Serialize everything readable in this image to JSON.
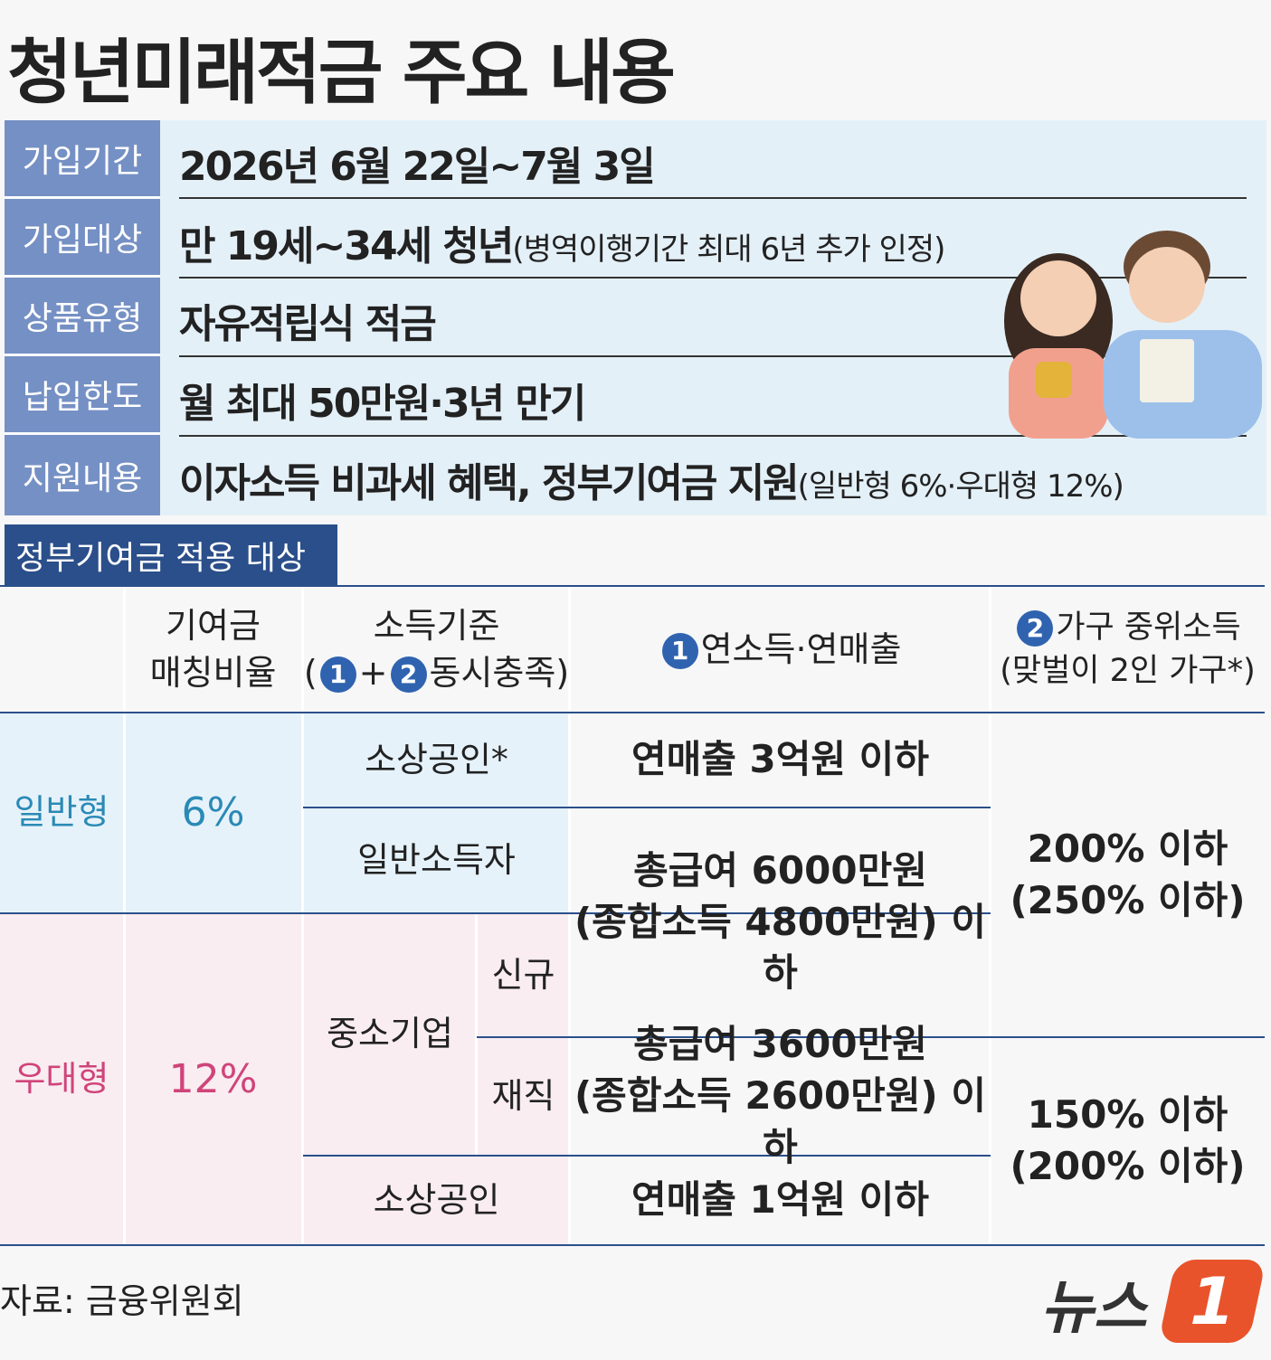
{
  "title": "청년미래적금 주요 내용",
  "summary": [
    {
      "label": "가입기간",
      "value": "2026년 6월 22일~7월 3일"
    },
    {
      "label": "가입대상",
      "value": "만 19세~34세 청년",
      "note": "(병역이행기간 최대 6년 추가 인정)"
    },
    {
      "label": "상품유형",
      "value": "자유적립식 적금"
    },
    {
      "label": "납입한도",
      "value": "월 최대 50만원·3년 만기"
    },
    {
      "label": "지원내용",
      "value": "이자소득 비과세 혜택, 정부기여금 지원",
      "note": "(일반형 6%·우대형 12%)"
    }
  ],
  "section_title": "정부기여금 적용 대상",
  "table": {
    "headers": {
      "ratio": [
        "기여금",
        "매칭비율"
      ],
      "criteria": {
        "title": "소득기준",
        "open": "(",
        "first": "1",
        "plus": "+",
        "second": "2",
        "close": "동시충족)"
      },
      "income": {
        "badge": "1",
        "text": "연소득·연매출"
      },
      "household": {
        "badge": "2",
        "text": "가구 중위소득",
        "note": "(맞벌이 2인 가구*)"
      }
    },
    "general": {
      "type": "일반형",
      "ratio": "6%",
      "groups": [
        "소상공인*",
        "일반소득자"
      ]
    },
    "preferred": {
      "type": "우대형",
      "ratio": "12%",
      "sme": "중소기업",
      "sme_sub": [
        "신규",
        "재직"
      ],
      "small_business": "소상공인"
    },
    "income": [
      [
        "연매출 3억원 이하"
      ],
      [
        "총급여 6000만원",
        "(종합소득 4800만원) 이하"
      ],
      [
        "총급여 3600만원",
        "(종합소득 2600만원) 이하"
      ],
      [
        "연매출 1억원 이하"
      ]
    ],
    "household": [
      [
        "200% 이하",
        "(250% 이하)"
      ],
      [
        "150% 이하",
        "(200% 이하)"
      ]
    ]
  },
  "source": "자료: 금융위원회",
  "logo": {
    "text": "뉴스",
    "mark": "1"
  }
}
